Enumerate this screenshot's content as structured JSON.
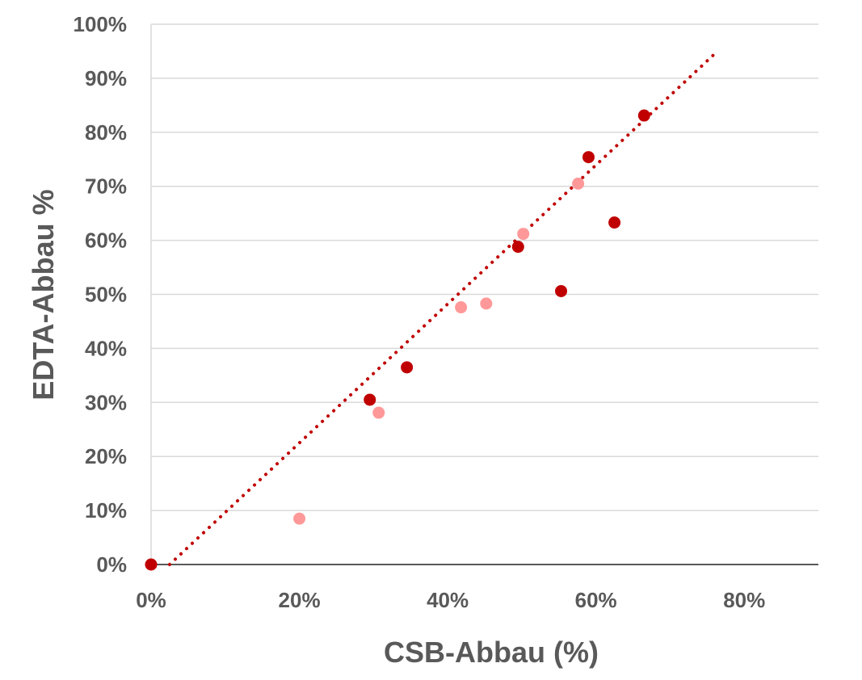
{
  "chart_data": {
    "type": "scatter",
    "xlabel": "CSB-Abbau (%)",
    "ylabel": "EDTA-Abbau %",
    "xlim": [
      0,
      0.9
    ],
    "ylim": [
      0,
      1
    ],
    "x_ticks": [
      0,
      0.2,
      0.4,
      0.6,
      0.8
    ],
    "x_tick_labels": [
      "0%",
      "20%",
      "40%",
      "60%",
      "80%"
    ],
    "y_ticks": [
      0,
      0.1,
      0.2,
      0.3,
      0.4,
      0.5,
      0.6,
      0.7,
      0.8,
      0.9,
      1.0
    ],
    "y_tick_labels": [
      "0%",
      "10%",
      "20%",
      "30%",
      "40%",
      "50%",
      "60%",
      "70%",
      "80%",
      "90%",
      "100%"
    ],
    "grid": true,
    "series": [
      {
        "name": "series-dark",
        "color": "#C00000",
        "points": [
          {
            "x": 0.0,
            "y": 0.0
          },
          {
            "x": 0.295,
            "y": 0.305
          },
          {
            "x": 0.345,
            "y": 0.365
          },
          {
            "x": 0.495,
            "y": 0.588
          },
          {
            "x": 0.553,
            "y": 0.506
          },
          {
            "x": 0.59,
            "y": 0.754
          },
          {
            "x": 0.625,
            "y": 0.633
          },
          {
            "x": 0.665,
            "y": 0.831
          }
        ]
      },
      {
        "name": "series-light",
        "color": "#FF9999",
        "points": [
          {
            "x": 0.0,
            "y": 0.0
          },
          {
            "x": 0.2,
            "y": 0.085
          },
          {
            "x": 0.307,
            "y": 0.281
          },
          {
            "x": 0.418,
            "y": 0.476
          },
          {
            "x": 0.452,
            "y": 0.483
          },
          {
            "x": 0.502,
            "y": 0.612
          },
          {
            "x": 0.576,
            "y": 0.705
          }
        ]
      }
    ],
    "trendline": {
      "type": "linear",
      "style": "dotted",
      "color": "#C00000",
      "from": {
        "x": 0.025,
        "y": 0.0
      },
      "to": {
        "x": 0.76,
        "y": 0.945
      }
    }
  }
}
